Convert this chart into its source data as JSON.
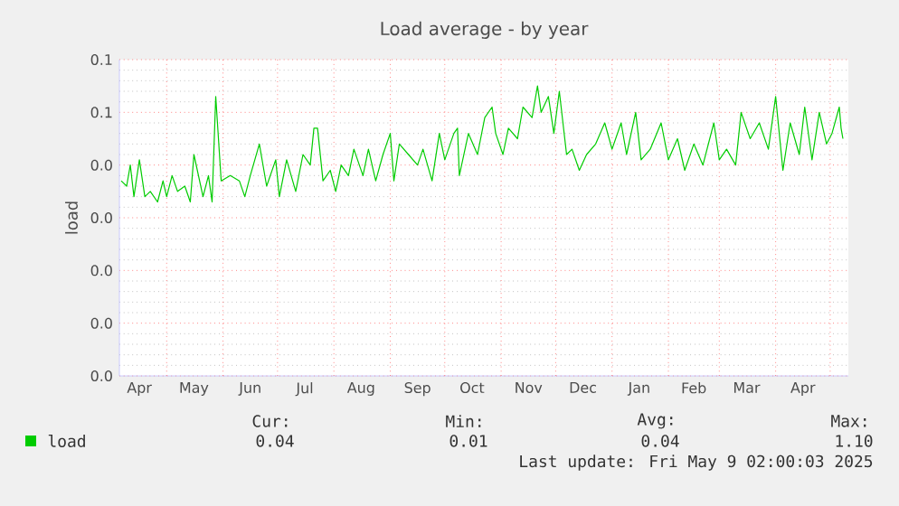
{
  "chart_data": {
    "type": "line",
    "title": "Load average - by year",
    "ylabel": "load",
    "x": [
      "2024-04-06",
      "2024-04-09",
      "2024-04-11",
      "2024-04-13",
      "2024-04-16",
      "2024-04-19",
      "2024-04-22",
      "2024-04-26",
      "2024-04-29",
      "2024-05-01",
      "2024-05-04",
      "2024-05-07",
      "2024-05-11",
      "2024-05-14",
      "2024-05-16",
      "2024-05-21",
      "2024-05-24",
      "2024-05-26",
      "2024-05-28",
      "2024-05-31",
      "2024-06-05",
      "2024-06-10",
      "2024-06-13",
      "2024-06-16",
      "2024-06-21",
      "2024-06-25",
      "2024-06-30",
      "2024-07-02",
      "2024-07-06",
      "2024-07-11",
      "2024-07-15",
      "2024-07-19",
      "2024-07-21",
      "2024-07-23",
      "2024-07-26",
      "2024-07-30",
      "2024-08-02",
      "2024-08-05",
      "2024-08-09",
      "2024-08-12",
      "2024-08-17",
      "2024-08-20",
      "2024-08-24",
      "2024-08-28",
      "2024-09-01",
      "2024-09-03",
      "2024-09-06",
      "2024-09-11",
      "2024-09-16",
      "2024-09-19",
      "2024-09-24",
      "2024-09-28",
      "2024-10-01",
      "2024-10-06",
      "2024-10-08",
      "2024-10-09",
      "2024-10-14",
      "2024-10-19",
      "2024-10-23",
      "2024-10-27",
      "2024-10-29",
      "2024-11-02",
      "2024-11-05",
      "2024-11-10",
      "2024-11-13",
      "2024-11-18",
      "2024-11-21",
      "2024-11-23",
      "2024-11-27",
      "2024-11-30",
      "2024-12-03",
      "2024-12-07",
      "2024-12-10",
      "2024-12-14",
      "2024-12-18",
      "2024-12-23",
      "2024-12-28",
      "2025-01-01",
      "2025-01-06",
      "2025-01-09",
      "2025-01-14",
      "2025-01-17",
      "2025-01-22",
      "2025-01-28",
      "2025-02-01",
      "2025-02-06",
      "2025-02-10",
      "2025-02-15",
      "2025-02-20",
      "2025-02-26",
      "2025-03-01",
      "2025-03-05",
      "2025-03-10",
      "2025-03-13",
      "2025-03-18",
      "2025-03-23",
      "2025-03-28",
      "2025-04-01",
      "2025-04-05",
      "2025-04-09",
      "2025-04-14",
      "2025-04-17",
      "2025-04-21",
      "2025-04-25",
      "2025-04-29",
      "2025-05-02",
      "2025-05-06",
      "2025-05-07",
      "2025-05-08"
    ],
    "series": [
      {
        "name": "load",
        "color": "#00cc00",
        "values": [
          0.037,
          0.036,
          0.04,
          0.034,
          0.041,
          0.034,
          0.035,
          0.033,
          0.037,
          0.034,
          0.038,
          0.035,
          0.036,
          0.033,
          0.042,
          0.034,
          0.038,
          0.033,
          0.053,
          0.037,
          0.038,
          0.037,
          0.034,
          0.038,
          0.044,
          0.036,
          0.041,
          0.034,
          0.041,
          0.035,
          0.042,
          0.04,
          0.047,
          0.047,
          0.037,
          0.039,
          0.035,
          0.04,
          0.038,
          0.043,
          0.038,
          0.043,
          0.037,
          0.042,
          0.046,
          0.037,
          0.044,
          0.042,
          0.04,
          0.043,
          0.037,
          0.046,
          0.041,
          0.046,
          0.047,
          0.038,
          0.046,
          0.042,
          0.049,
          0.051,
          0.046,
          0.042,
          0.047,
          0.045,
          0.051,
          0.049,
          0.055,
          0.05,
          0.053,
          0.046,
          0.054,
          0.042,
          0.043,
          0.039,
          0.042,
          0.044,
          0.048,
          0.043,
          0.048,
          0.042,
          0.05,
          0.041,
          0.043,
          0.048,
          0.041,
          0.045,
          0.039,
          0.044,
          0.04,
          0.048,
          0.041,
          0.043,
          0.04,
          0.05,
          0.045,
          0.048,
          0.043,
          0.053,
          0.039,
          0.048,
          0.042,
          0.051,
          0.041,
          0.05,
          0.044,
          0.046,
          0.051,
          0.047,
          0.045
        ]
      }
    ],
    "xlim": [
      "2024-04-05",
      "2025-05-11"
    ],
    "xticks": [
      {
        "value": "2024-04-16",
        "label": "Apr"
      },
      {
        "value": "2024-05-01",
        "label": null
      },
      {
        "value": "2024-05-16",
        "label": "May"
      },
      {
        "value": "2024-06-01",
        "label": null
      },
      {
        "value": "2024-06-16",
        "label": "Jun"
      },
      {
        "value": "2024-07-01",
        "label": null
      },
      {
        "value": "2024-07-16",
        "label": "Jul"
      },
      {
        "value": "2024-08-01",
        "label": null
      },
      {
        "value": "2024-08-16",
        "label": "Aug"
      },
      {
        "value": "2024-09-01",
        "label": null
      },
      {
        "value": "2024-09-16",
        "label": "Sep"
      },
      {
        "value": "2024-10-01",
        "label": null
      },
      {
        "value": "2024-10-16",
        "label": "Oct"
      },
      {
        "value": "2024-11-01",
        "label": null
      },
      {
        "value": "2024-11-16",
        "label": "Nov"
      },
      {
        "value": "2024-12-01",
        "label": null
      },
      {
        "value": "2024-12-16",
        "label": "Dec"
      },
      {
        "value": "2025-01-01",
        "label": null
      },
      {
        "value": "2025-01-16",
        "label": "Jan"
      },
      {
        "value": "2025-02-01",
        "label": null
      },
      {
        "value": "2025-02-15",
        "label": "Feb"
      },
      {
        "value": "2025-03-01",
        "label": null
      },
      {
        "value": "2025-03-16",
        "label": "Mar"
      },
      {
        "value": "2025-04-01",
        "label": null
      },
      {
        "value": "2025-04-16",
        "label": "Apr"
      },
      {
        "value": "2025-05-01",
        "label": null
      }
    ],
    "ylim": [
      0,
      0.06
    ],
    "yticks": [
      {
        "value": 0,
        "label": "0.0"
      },
      {
        "value": 0.01,
        "label": "0.0"
      },
      {
        "value": 0.02,
        "label": "0.0"
      },
      {
        "value": 0.03,
        "label": "0.0"
      },
      {
        "value": 0.04,
        "label": "0.0"
      },
      {
        "value": 0.05,
        "label": "0.1"
      },
      {
        "value": 0.06,
        "label": "0.1"
      }
    ],
    "grid": true,
    "legend": "bottom left",
    "marker": "none",
    "line_style": "solid",
    "annotations": [
      "Cur:",
      "0.04",
      "Min:",
      "0.01",
      "Avg:",
      "0.04",
      "Max:",
      "1.10",
      "Last update: Fri May 9 02:00:03 2025"
    ]
  }
}
